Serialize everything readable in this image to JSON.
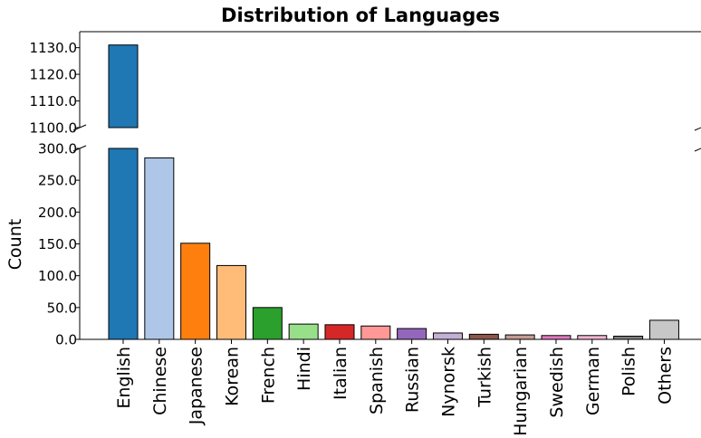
{
  "chart_data": {
    "type": "bar",
    "title": "Distribution of Languages",
    "xlabel": "",
    "ylabel": "Count",
    "broken_axis": true,
    "upper_ylim": [
      1100,
      1136
    ],
    "lower_ylim": [
      0,
      300
    ],
    "upper_ticks": [
      "1100.0",
      "1110.0",
      "1120.0",
      "1130.0"
    ],
    "lower_ticks": [
      "0.0",
      "50.0",
      "100.0",
      "150.0",
      "200.0",
      "250.0",
      "300.0"
    ],
    "categories": [
      "English",
      "Chinese",
      "Japanese",
      "Korean",
      "French",
      "Hindi",
      "Italian",
      "Spanish",
      "Russian",
      "Nynorsk",
      "Turkish",
      "Hungarian",
      "Swedish",
      "German",
      "Polish",
      "Others"
    ],
    "values": [
      1131,
      285,
      151,
      116,
      50,
      24,
      23,
      21,
      17,
      10,
      8,
      7,
      6,
      6,
      5,
      30
    ],
    "colors": [
      "#1f77b4",
      "#aec7e8",
      "#ff7f0e",
      "#ffbb78",
      "#2ca02c",
      "#98df8a",
      "#d62728",
      "#ff9896",
      "#9467bd",
      "#c5b0d5",
      "#8c564b",
      "#c49c94",
      "#e377c2",
      "#f7b6d2",
      "#7f7f7f",
      "#c7c7c7"
    ],
    "grid": false,
    "legend": "none"
  }
}
